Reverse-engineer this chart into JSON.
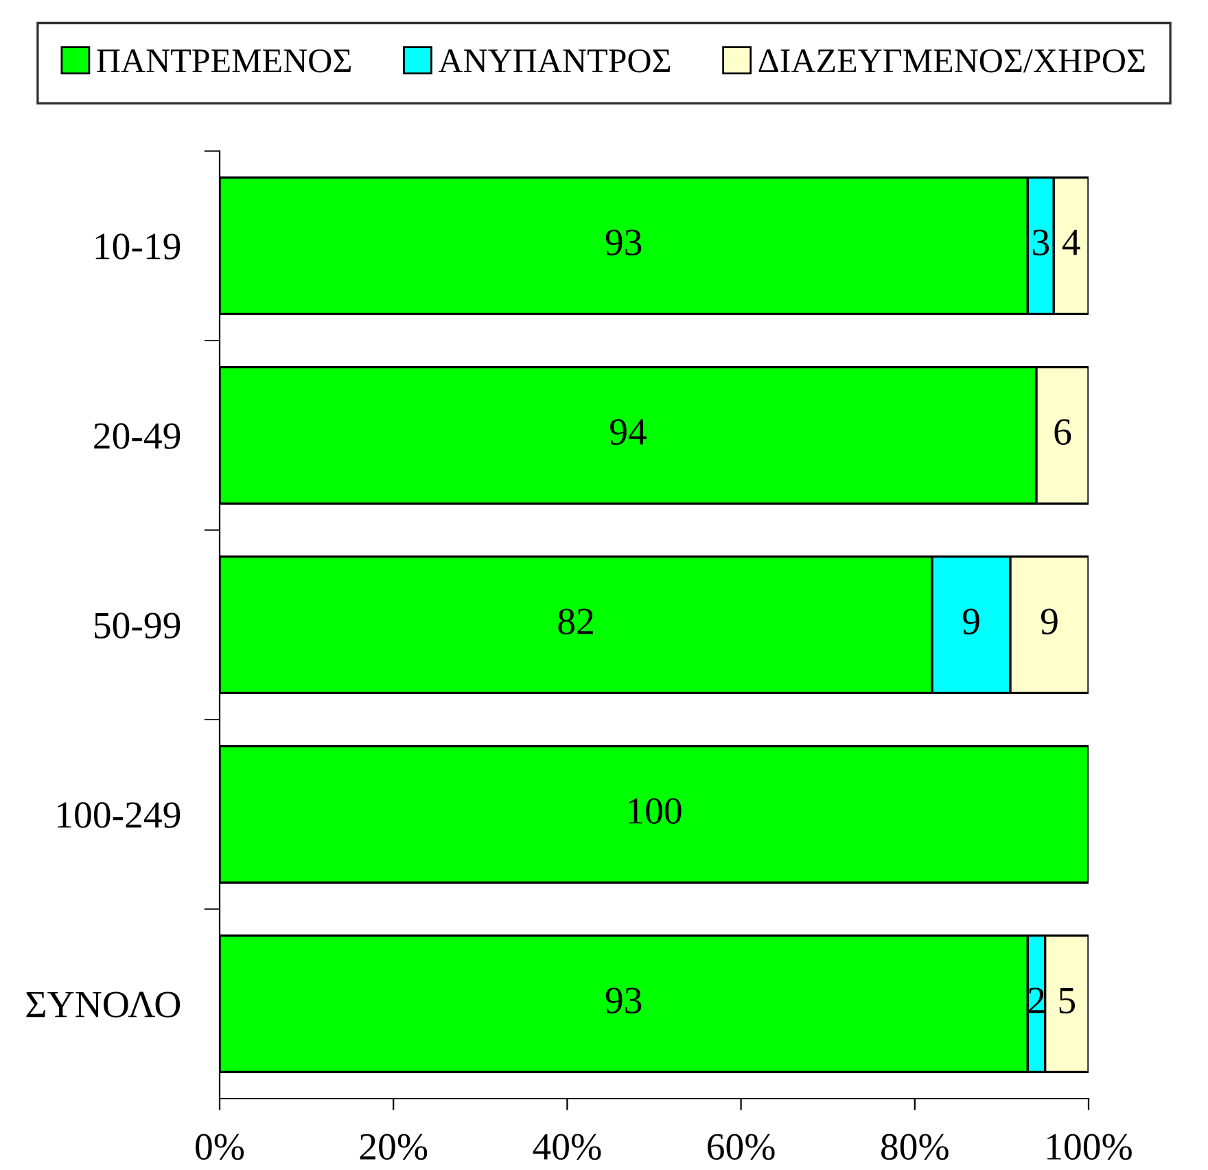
{
  "chart_data": {
    "type": "bar",
    "orientation": "horizontal",
    "stacked": true,
    "categories": [
      "10-19",
      "20-49",
      "50-99",
      "100-249",
      "ΣΥΝΟΛΟ"
    ],
    "series": [
      {
        "name": "ΠΑΝΤΡΕΜΕΝΟΣ",
        "color": "#00ff00",
        "values": [
          93,
          94,
          82,
          100,
          93
        ],
        "value_labels": [
          "93",
          "94",
          "82",
          "100",
          "93"
        ]
      },
      {
        "name": "ΑΝΥΠΑΝΤΡΟΣ",
        "color": "#00ffff",
        "values": [
          3,
          0,
          9,
          0,
          2
        ],
        "value_labels": [
          "3",
          null,
          "9",
          null,
          "2"
        ]
      },
      {
        "name": "ΔΙΑΖΕΥΓΜΕΝΟΣ/ΧΗΡΟΣ",
        "color": "#ffffcc",
        "values": [
          4,
          6,
          9,
          0,
          5
        ],
        "value_labels": [
          "4",
          "6",
          "9",
          null,
          "5"
        ]
      }
    ],
    "xlim": [
      0,
      100
    ],
    "xticks": [
      {
        "value": 0,
        "label": "0%"
      },
      {
        "value": 20,
        "label": "20%"
      },
      {
        "value": 40,
        "label": "40%"
      },
      {
        "value": 60,
        "label": "60%"
      },
      {
        "value": 80,
        "label": "80%"
      },
      {
        "value": 100,
        "label": "100%"
      }
    ],
    "grid": false,
    "legend": "top"
  }
}
